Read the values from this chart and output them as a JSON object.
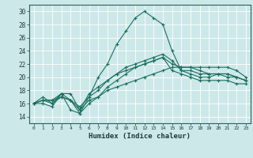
{
  "title": "",
  "xlabel": "Humidex (Indice chaleur)",
  "xlim": [
    -0.5,
    23.5
  ],
  "ylim": [
    13,
    31
  ],
  "xticks": [
    0,
    1,
    2,
    3,
    4,
    5,
    6,
    7,
    8,
    9,
    10,
    11,
    12,
    13,
    14,
    15,
    16,
    17,
    18,
    19,
    20,
    21,
    22,
    23
  ],
  "yticks": [
    14,
    16,
    18,
    20,
    22,
    24,
    26,
    28,
    30
  ],
  "bg_color": "#cde8e8",
  "line_color": "#1a7060",
  "grid_color": "#ffffff",
  "lines": [
    [
      16.0,
      17.0,
      16.0,
      17.5,
      17.5,
      15.0,
      16.5,
      17.0,
      18.0,
      18.5,
      19.0,
      19.5,
      20.0,
      20.5,
      21.0,
      21.5,
      21.5,
      21.5,
      21.5,
      21.5,
      21.5,
      21.5,
      21.0,
      20.0
    ],
    [
      16.0,
      16.5,
      16.5,
      17.5,
      16.5,
      14.5,
      17.0,
      20.0,
      22.0,
      25.0,
      27.0,
      29.0,
      30.0,
      29.0,
      28.0,
      24.0,
      21.0,
      21.0,
      20.5,
      20.5,
      20.5,
      20.5,
      20.0,
      19.5
    ],
    [
      16.0,
      16.0,
      15.5,
      17.5,
      15.0,
      14.5,
      16.0,
      17.0,
      18.5,
      19.5,
      20.5,
      21.5,
      22.0,
      22.5,
      23.0,
      21.0,
      20.5,
      20.0,
      19.5,
      19.5,
      19.5,
      19.5,
      19.0,
      19.0
    ],
    [
      16.0,
      16.5,
      16.0,
      17.0,
      16.5,
      15.0,
      17.5,
      18.5,
      19.5,
      20.5,
      21.5,
      22.0,
      22.5,
      23.0,
      23.5,
      22.5,
      21.0,
      20.5,
      20.0,
      20.0,
      20.5,
      20.5,
      20.0,
      19.5
    ],
    [
      16.0,
      16.5,
      16.5,
      17.0,
      16.5,
      15.5,
      17.0,
      18.0,
      19.5,
      20.5,
      21.0,
      21.5,
      22.0,
      22.5,
      23.0,
      22.0,
      21.5,
      21.5,
      21.0,
      20.5,
      20.5,
      20.0,
      20.0,
      19.5
    ]
  ]
}
